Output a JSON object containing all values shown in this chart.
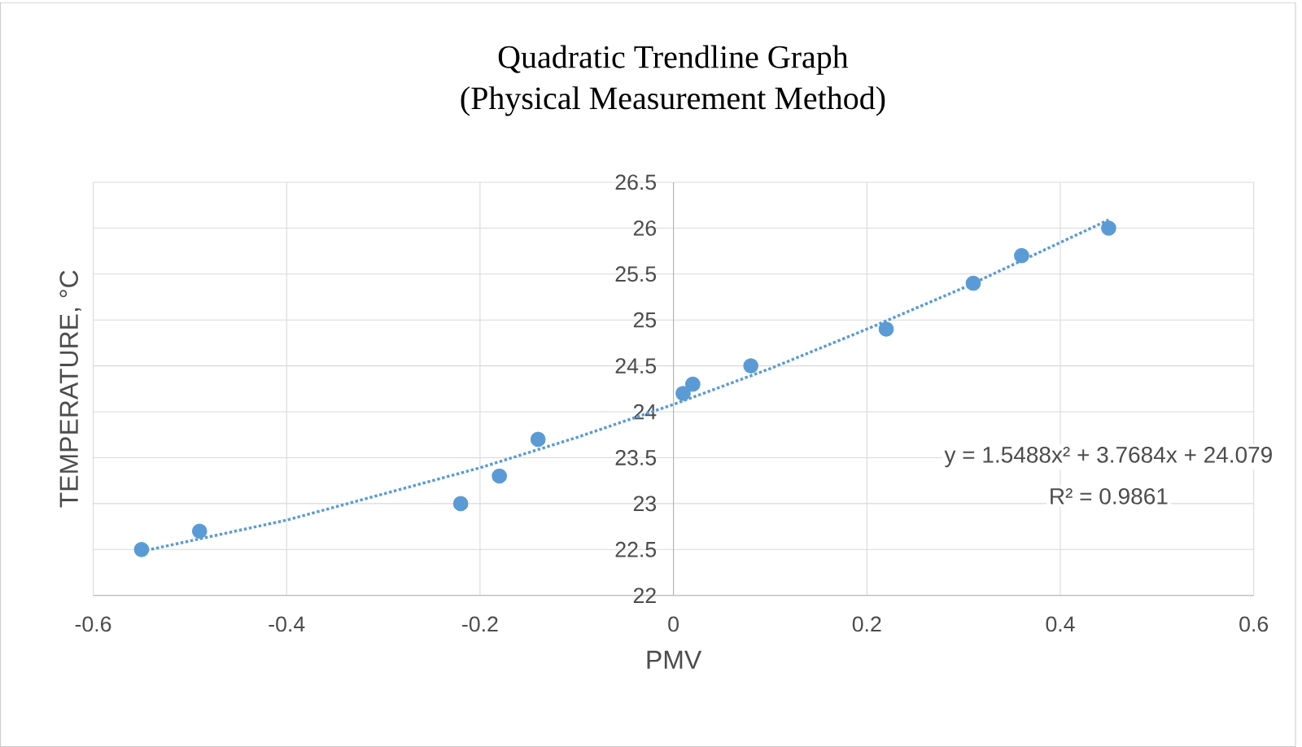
{
  "chart_data": {
    "type": "scatter",
    "title": "Quadratic Trendline Graph",
    "subtitle": "(Physical Measurement Method)",
    "xlabel": "PMV",
    "ylabel": "TEMPERATURE, °C",
    "xlim": [
      -0.6,
      0.6
    ],
    "xticks": [
      -0.6,
      -0.4,
      -0.2,
      0,
      0.2,
      0.4,
      0.6
    ],
    "ylim": [
      22,
      26.5
    ],
    "yticks": [
      22,
      22.5,
      23,
      23.5,
      24,
      24.5,
      25,
      25.5,
      26,
      26.5
    ],
    "grid": true,
    "series": [
      {
        "color": "#5b9bd5",
        "marker": "circle",
        "x": [
          -0.55,
          -0.49,
          -0.22,
          -0.18,
          -0.14,
          0.01,
          0.02,
          0.08,
          0.22,
          0.31,
          0.36,
          0.45
        ],
        "values": [
          22.5,
          22.7,
          23.0,
          23.3,
          23.7,
          24.2,
          24.3,
          24.5,
          24.9,
          25.4,
          25.7,
          26.0
        ]
      },
      {
        "type": "line",
        "color": "#5b9bd5",
        "line_style": "dotted",
        "marker": "none",
        "x": [
          -0.55,
          -0.4,
          -0.2,
          -0.1,
          0,
          0.1,
          0.2,
          0.3,
          0.45
        ],
        "values": [
          22.48,
          22.82,
          23.39,
          23.72,
          24.08,
          24.47,
          24.9,
          25.35,
          26.09
        ]
      }
    ],
    "annotations": [
      "y = 1.5488x² + 3.7684x + 24.079",
      "R² = 0.9861"
    ]
  }
}
